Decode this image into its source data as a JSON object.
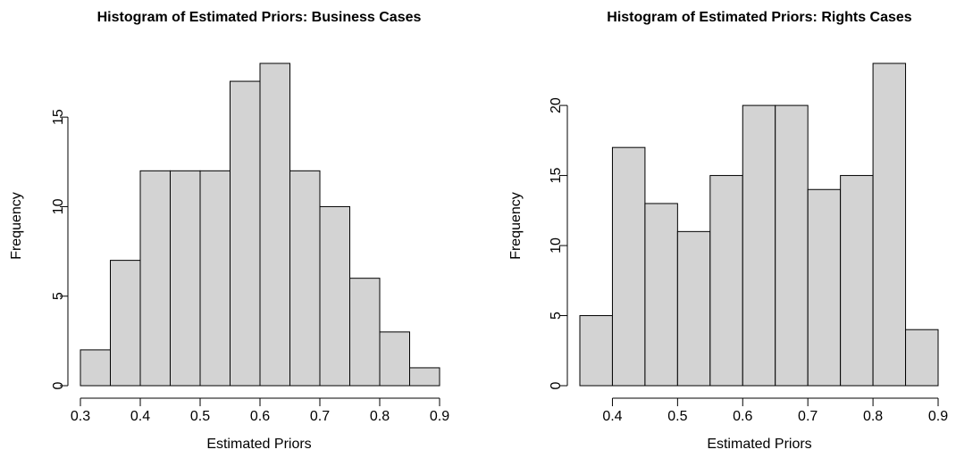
{
  "chart_data": [
    {
      "type": "bar",
      "title": "Histogram of Estimated Priors: Business Cases",
      "xlabel": "Estimated Priors",
      "ylabel": "Frequency",
      "bin_edges": [
        0.3,
        0.35,
        0.4,
        0.45,
        0.5,
        0.55,
        0.6,
        0.65,
        0.7,
        0.75,
        0.8,
        0.85,
        0.9
      ],
      "values": [
        2,
        7,
        12,
        12,
        12,
        17,
        18,
        12,
        10,
        6,
        3,
        1
      ],
      "xlim": [
        0.3,
        0.9
      ],
      "ylim": [
        0,
        18
      ],
      "x_ticks": [
        0.3,
        0.4,
        0.5,
        0.6,
        0.7,
        0.8,
        0.9
      ],
      "x_tick_labels": [
        "0.3",
        "0.4",
        "0.5",
        "0.6",
        "0.7",
        "0.8",
        "0.9"
      ],
      "y_ticks": [
        0,
        5,
        10,
        15
      ],
      "y_tick_labels": [
        "0",
        "5",
        "10",
        "15"
      ],
      "bar_color": "#d3d3d3",
      "grid": false
    },
    {
      "type": "bar",
      "title": "Histogram of Estimated Priors: Rights Cases",
      "xlabel": "Estimated Priors",
      "ylabel": "Frequency",
      "bin_edges": [
        0.35,
        0.4,
        0.45,
        0.5,
        0.55,
        0.6,
        0.65,
        0.7,
        0.75,
        0.8,
        0.85,
        0.9
      ],
      "values": [
        5,
        17,
        13,
        11,
        15,
        20,
        20,
        14,
        15,
        23,
        4
      ],
      "xlim": [
        0.35,
        0.9
      ],
      "ylim": [
        0,
        23
      ],
      "x_ticks": [
        0.4,
        0.5,
        0.6,
        0.7,
        0.8,
        0.9
      ],
      "x_tick_labels": [
        "0.4",
        "0.5",
        "0.6",
        "0.7",
        "0.8",
        "0.9"
      ],
      "y_ticks": [
        0,
        5,
        10,
        15,
        20
      ],
      "y_tick_labels": [
        "0",
        "5",
        "10",
        "15",
        "20"
      ],
      "bar_color": "#d3d3d3",
      "grid": false
    }
  ]
}
